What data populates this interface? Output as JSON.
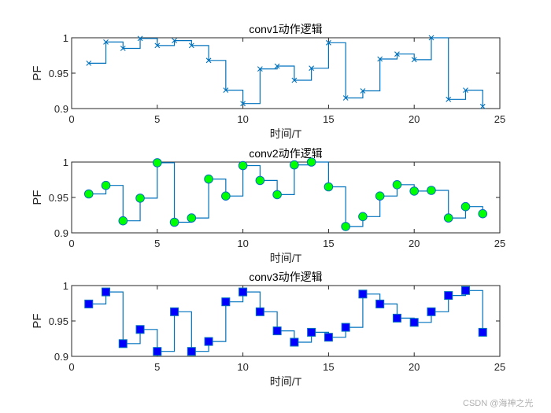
{
  "figure": {
    "watermark": "CSDN @海神之光"
  },
  "chart_data": [
    {
      "type": "line",
      "style": "stairs",
      "title": "conv1动作逻辑",
      "xlabel": "时间/T",
      "ylabel": "PF",
      "xlim": [
        0,
        25
      ],
      "ylim": [
        0.9,
        1
      ],
      "xticks": [
        "0",
        "5",
        "10",
        "15",
        "20",
        "25"
      ],
      "yticks": [
        "0.9",
        "0.95",
        "1"
      ],
      "marker": "x",
      "line_color": "#0072BD",
      "marker_face": "none",
      "marker_edge": "#0072BD",
      "x": [
        1,
        2,
        3,
        4,
        5,
        6,
        7,
        8,
        9,
        10,
        11,
        12,
        13,
        14,
        15,
        16,
        17,
        18,
        19,
        20,
        21,
        22,
        23,
        24
      ],
      "values": [
        0.964,
        0.994,
        0.985,
        0.999,
        0.989,
        0.996,
        0.989,
        0.968,
        0.926,
        0.907,
        0.956,
        0.96,
        0.94,
        0.957,
        0.993,
        0.915,
        0.925,
        0.97,
        0.977,
        0.969,
        1.0,
        0.913,
        0.926,
        0.903
      ]
    },
    {
      "type": "line",
      "style": "stairs",
      "title": "conv2动作逻辑",
      "xlabel": "时间/T",
      "ylabel": "PF",
      "xlim": [
        0,
        25
      ],
      "ylim": [
        0.9,
        1
      ],
      "xticks": [
        "0",
        "5",
        "10",
        "15",
        "20",
        "25"
      ],
      "yticks": [
        "0.9",
        "0.95",
        "1"
      ],
      "marker": "circle",
      "line_color": "#0072BD",
      "marker_face": "#00FF00",
      "marker_edge": "#0072BD",
      "x": [
        1,
        2,
        3,
        4,
        5,
        6,
        7,
        8,
        9,
        10,
        11,
        12,
        13,
        14,
        15,
        16,
        17,
        18,
        19,
        20,
        21,
        22,
        23,
        24
      ],
      "values": [
        0.955,
        0.967,
        0.917,
        0.949,
        0.999,
        0.915,
        0.921,
        0.976,
        0.952,
        0.995,
        0.974,
        0.954,
        0.996,
        1.0,
        0.965,
        0.909,
        0.923,
        0.952,
        0.968,
        0.959,
        0.96,
        0.921,
        0.937,
        0.927
      ]
    },
    {
      "type": "line",
      "style": "stairs",
      "title": "conv3动作逻辑",
      "xlabel": "时间/T",
      "ylabel": "PF",
      "xlim": [
        0,
        25
      ],
      "ylim": [
        0.9,
        1
      ],
      "xticks": [
        "0",
        "5",
        "10",
        "15",
        "20",
        "25"
      ],
      "yticks": [
        "0.9",
        "0.95",
        "1"
      ],
      "marker": "square",
      "line_color": "#0072BD",
      "marker_face": "#0000FF",
      "marker_edge": "#0072BD",
      "x": [
        1,
        2,
        3,
        4,
        5,
        6,
        7,
        8,
        9,
        10,
        11,
        12,
        13,
        14,
        15,
        16,
        17,
        18,
        19,
        20,
        21,
        22,
        23,
        24
      ],
      "values": [
        0.974,
        0.991,
        0.918,
        0.938,
        0.907,
        0.963,
        0.907,
        0.921,
        0.977,
        0.991,
        0.963,
        0.936,
        0.92,
        0.934,
        0.927,
        0.941,
        0.988,
        0.974,
        0.954,
        0.948,
        0.963,
        0.986,
        0.993,
        0.934
      ]
    }
  ]
}
